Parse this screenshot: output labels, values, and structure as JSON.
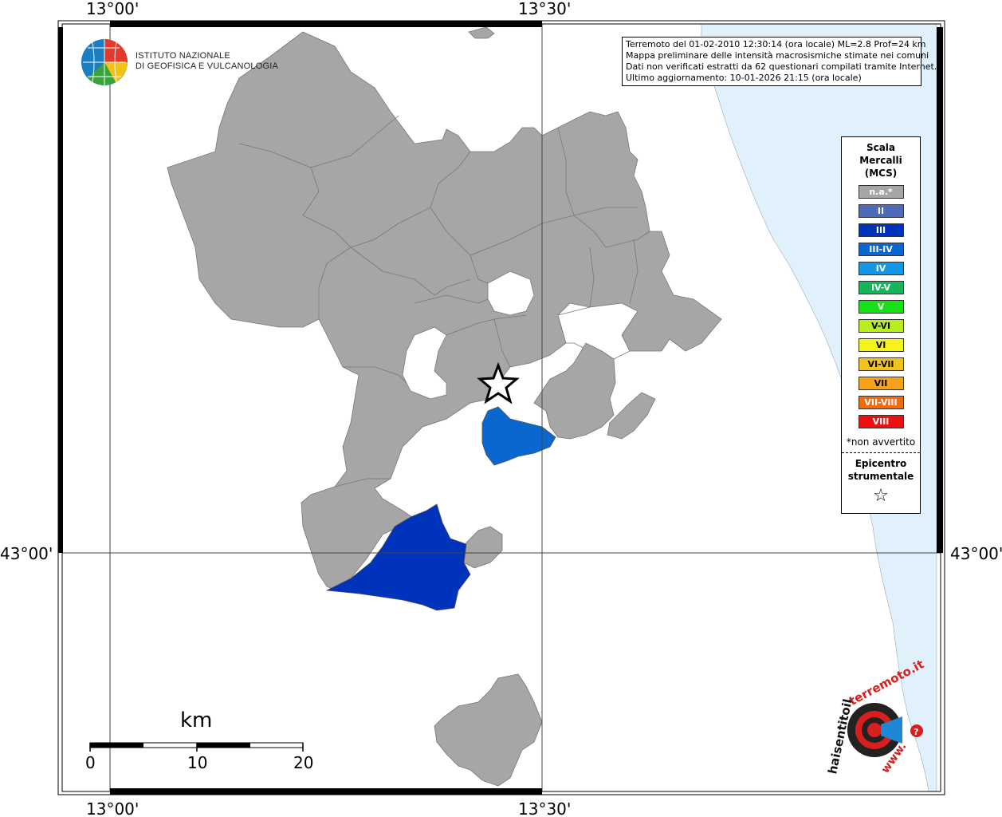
{
  "coordinates": {
    "top": [
      "13°00'",
      "13°30'"
    ],
    "bottom": [
      "13°00'",
      "13°30'"
    ],
    "left": "43°00'",
    "right": "43°00'"
  },
  "header": {
    "org_line1": "ISTITUTO NAZIONALE",
    "org_line2": "DI GEOFISICA E VULCANOLOGIA"
  },
  "info": {
    "line1": "Terremoto del 01-02-2010 12:30:14 (ora locale) ML=2.8 Prof=24 km",
    "line2": "Mappa preliminare delle intensità macrosismiche stimate nei comuni",
    "line3": "Dati non verificati estratti da 62 questionari compilati tramite Internet.",
    "line4": "Ultimo aggiornamento: 10-01-2026 21:15 (ora locale)"
  },
  "legend": {
    "title_line1": "Scala",
    "title_line2": "Mercalli",
    "title_line3": "(MCS)",
    "items": [
      {
        "label": "n.a.*",
        "color": "#a6a6a6"
      },
      {
        "label": "II",
        "color": "#4e6ab8"
      },
      {
        "label": "III",
        "color": "#0033bb"
      },
      {
        "label": "III-IV",
        "color": "#0a67d0"
      },
      {
        "label": "IV",
        "color": "#1497e6"
      },
      {
        "label": "IV-V",
        "color": "#15b65a"
      },
      {
        "label": "V",
        "color": "#18e018"
      },
      {
        "label": "V-VI",
        "color": "#b8ee1e"
      },
      {
        "label": "VI",
        "color": "#f4f41c"
      },
      {
        "label": "VI-VII",
        "color": "#f4c21c"
      },
      {
        "label": "VII",
        "color": "#f6a21a"
      },
      {
        "label": "VII-VIII",
        "color": "#f06a10"
      },
      {
        "label": "VIII",
        "color": "#ee1010"
      }
    ],
    "note": "*non avvertito",
    "epicentro_line1": "Epicentro",
    "epicentro_line2": "strumentale",
    "star": "☆"
  },
  "scale_bar": {
    "unit": "km",
    "ticks": [
      "0",
      "10",
      "20"
    ]
  },
  "logo_haisentito": {
    "text_top": "terremoto.it",
    "text_left": "haisentitoil",
    "text_bottom": "www.",
    "question": "?"
  },
  "colors": {
    "comune_na": "#a6a6a6",
    "intensity_III": "#0033bb",
    "intensity_III_IV": "#0a67d0",
    "sea": "#e1f1fc"
  }
}
